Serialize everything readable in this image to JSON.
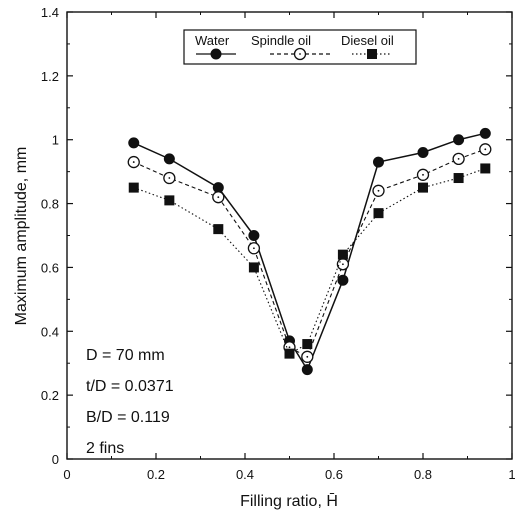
{
  "chart_data": {
    "type": "line",
    "title": "",
    "xlabel": "Filling ratio, H̄",
    "ylabel": "Maximum amplitude, mm",
    "xlim": [
      0,
      1
    ],
    "ylim": [
      0,
      1.4
    ],
    "x_ticks": [
      0,
      0.2,
      0.4,
      0.6,
      0.8,
      1
    ],
    "y_ticks": [
      0,
      0.2,
      0.4,
      0.6,
      0.8,
      1,
      1.2,
      1.4
    ],
    "x_tick_labels": [
      "0",
      "0.2",
      "0.4",
      "0.6",
      "0.8",
      "1"
    ],
    "y_tick_labels": [
      "0",
      "0.2",
      "0.4",
      "0.6",
      "0.8",
      "1",
      "1.2",
      "1.4"
    ],
    "grid": false,
    "legend_position": "top-center",
    "series": [
      {
        "name": "Water",
        "marker": "filled-circle",
        "line": "solid",
        "color": "#111111",
        "x": [
          0.15,
          0.23,
          0.34,
          0.42,
          0.5,
          0.54,
          0.62,
          0.7,
          0.8,
          0.88,
          0.94
        ],
        "y": [
          0.99,
          0.94,
          0.85,
          0.7,
          0.37,
          0.28,
          0.56,
          0.93,
          0.96,
          1.0,
          1.02
        ]
      },
      {
        "name": "Spindle oil",
        "marker": "open-circle",
        "line": "dashed",
        "color": "#111111",
        "x": [
          0.15,
          0.23,
          0.34,
          0.42,
          0.5,
          0.54,
          0.62,
          0.7,
          0.8,
          0.88,
          0.94
        ],
        "y": [
          0.93,
          0.88,
          0.82,
          0.66,
          0.35,
          0.32,
          0.61,
          0.84,
          0.89,
          0.94,
          0.97
        ]
      },
      {
        "name": "Diesel oil",
        "marker": "filled-square",
        "line": "dotted",
        "color": "#111111",
        "x": [
          0.15,
          0.23,
          0.34,
          0.42,
          0.5,
          0.54,
          0.62,
          0.7,
          0.8,
          0.88,
          0.94
        ],
        "y": [
          0.85,
          0.81,
          0.72,
          0.6,
          0.33,
          0.36,
          0.64,
          0.77,
          0.85,
          0.88,
          0.91
        ]
      }
    ],
    "annotations": [
      "D = 70 mm",
      "t/D = 0.0371",
      "B/D = 0.119",
      "2 fins"
    ]
  }
}
